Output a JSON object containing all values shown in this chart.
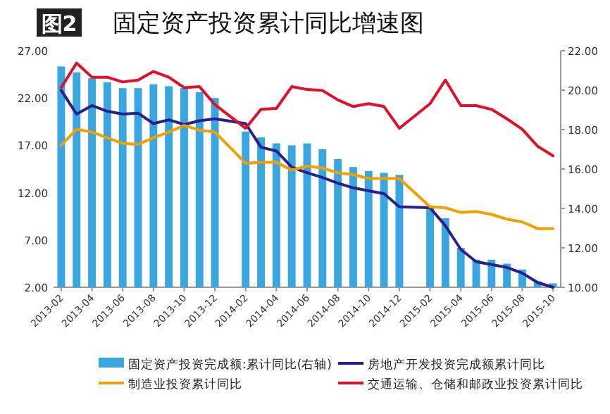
{
  "chart_data": {
    "type": "bar",
    "title": "固定资产投资累计同比增速图",
    "annotations": [
      "图2"
    ],
    "categories": [
      "2013-02",
      null,
      "2013-04",
      null,
      "2013-06",
      null,
      "2013-08",
      null,
      "2013-10",
      null,
      "2013-12",
      null,
      "2014-02",
      null,
      "2014-04",
      null,
      "2014-06",
      null,
      "2014-08",
      null,
      "2014-10",
      null,
      "2014-12",
      null,
      "2015-02",
      null,
      "2015-04",
      null,
      "2015-06",
      null,
      "2015-08",
      null,
      "2015-10"
    ],
    "ylim": [
      2,
      27
    ],
    "yticks": [
      {
        "value": 2,
        "label": "2.00"
      },
      {
        "value": 7,
        "label": "7.00"
      },
      {
        "value": 12,
        "label": "12.00"
      },
      {
        "value": 17,
        "label": "17.00"
      },
      {
        "value": 22,
        "label": "22.00"
      },
      {
        "value": 27,
        "label": "27.00"
      }
    ],
    "y2lim": [
      10,
      22
    ],
    "y2ticks": [
      {
        "value": 10,
        "label": "10.00"
      },
      {
        "value": 12,
        "label": "12.00"
      },
      {
        "value": 14,
        "label": "14.00"
      },
      {
        "value": 16,
        "label": "16.00"
      },
      {
        "value": 18,
        "label": "18.00"
      },
      {
        "value": 20,
        "label": "20.00"
      },
      {
        "value": 22,
        "label": "22.00"
      }
    ],
    "legend": "bottom",
    "series": [
      {
        "name": "固定资产投资完成额:累计同比(右轴)",
        "axis": "y2",
        "color": "#3aa6e0",
        "values": [
          21.2,
          20.9,
          20.6,
          20.4,
          20.1,
          20.1,
          20.3,
          20.2,
          20.1,
          19.9,
          19.6,
          null,
          17.9,
          17.6,
          17.3,
          17.2,
          17.3,
          17.0,
          16.5,
          16.1,
          15.9,
          15.8,
          15.7,
          null,
          14.0,
          13.5,
          12.0,
          11.4,
          11.4,
          11.2,
          10.9,
          10.3,
          10.2
        ]
      },
      {
        "name": "房地产开发投资完成额累计同比",
        "type": "line",
        "color": "#2a1f8f",
        "values": [
          22.8,
          20.3,
          21.2,
          20.6,
          20.3,
          20.4,
          19.3,
          19.7,
          19.2,
          19.6,
          19.8,
          null,
          19.3,
          16.8,
          16.4,
          14.7,
          14.1,
          13.6,
          13.0,
          12.5,
          12.2,
          11.9,
          10.5,
          null,
          10.4,
          8.5,
          6.0,
          4.7,
          4.4,
          4.1,
          3.5,
          2.5,
          2.0
        ]
      },
      {
        "name": "制造业投资累计同比",
        "type": "line",
        "color": "#f0a000",
        "values": [
          17.0,
          18.7,
          18.4,
          17.8,
          17.2,
          17.1,
          17.8,
          18.4,
          19.1,
          18.6,
          18.4,
          null,
          15.1,
          15.2,
          15.2,
          14.4,
          14.8,
          14.6,
          14.1,
          13.9,
          13.5,
          13.5,
          13.5,
          null,
          10.5,
          10.4,
          9.9,
          10.0,
          9.7,
          9.2,
          8.9,
          8.2,
          8.2
        ]
      },
      {
        "name": "交通运输、仓储和邮政业投资累计同比",
        "type": "line",
        "color": "#e0102a",
        "values": [
          23.1,
          25.7,
          24.2,
          24.2,
          23.7,
          23.9,
          24.8,
          24.2,
          23.1,
          23.2,
          21.3,
          null,
          18.8,
          20.8,
          20.9,
          23.2,
          22.9,
          22.8,
          21.8,
          21.1,
          21.4,
          21.1,
          18.8,
          null,
          21.4,
          23.9,
          21.2,
          21.2,
          20.8,
          19.8,
          18.7,
          16.9,
          15.9
        ]
      }
    ]
  }
}
